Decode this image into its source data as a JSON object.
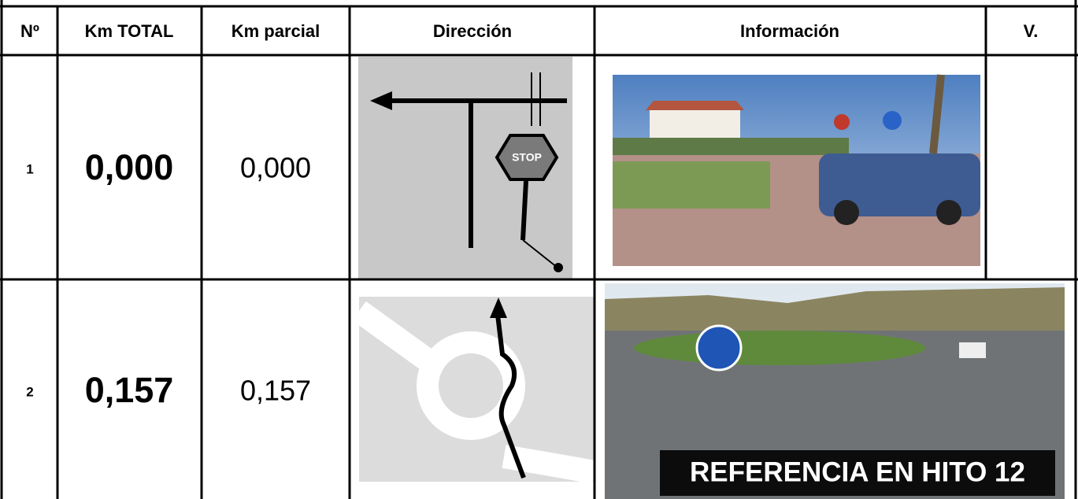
{
  "table": {
    "header": [
      "Nº",
      "Km TOTAL",
      "Km parcial",
      "Dirección",
      "Información",
      "V."
    ],
    "rows": [
      {
        "number": "1",
        "km_total": "0,000",
        "km_parcial": "0,000",
        "direction_sign": "STOP"
      },
      {
        "number": "2",
        "km_total": "0,157",
        "km_parcial": "0,157",
        "photo_caption": "REFERENCIA EN HITO 12"
      }
    ]
  }
}
